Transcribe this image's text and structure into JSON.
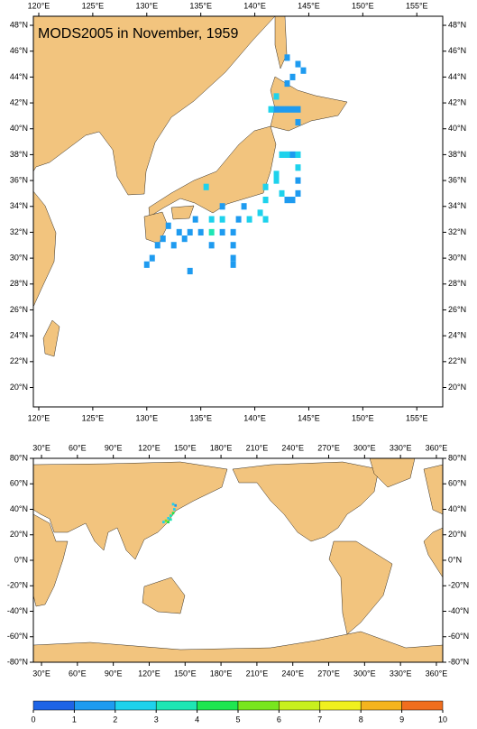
{
  "maps": [
    {
      "title": "MODS2005 in November, 1959",
      "xlim": [
        119.5,
        157.4
      ],
      "ylim": [
        18.5,
        48.7
      ],
      "cell": 0.5,
      "xticks": [
        {
          "value": 120,
          "label": "120°E"
        },
        {
          "value": 125,
          "label": "125°E"
        },
        {
          "value": 130,
          "label": "130°E"
        },
        {
          "value": 135,
          "label": "135°E"
        },
        {
          "value": 140,
          "label": "140°E"
        },
        {
          "value": 145,
          "label": "145°E"
        },
        {
          "value": 150,
          "label": "150°E"
        },
        {
          "value": 155,
          "label": "155°E"
        }
      ],
      "yticks": [
        {
          "value": 20,
          "label": "20°N"
        },
        {
          "value": 22,
          "label": "22°N"
        },
        {
          "value": 24,
          "label": "24°N"
        },
        {
          "value": 26,
          "label": "26°N"
        },
        {
          "value": 28,
          "label": "28°N"
        },
        {
          "value": 30,
          "label": "30°N"
        },
        {
          "value": 32,
          "label": "32°N"
        },
        {
          "value": 34,
          "label": "34°N"
        },
        {
          "value": 36,
          "label": "36°N"
        },
        {
          "value": 38,
          "label": "38°N"
        },
        {
          "value": 40,
          "label": "40°N"
        },
        {
          "value": 42,
          "label": "42°N"
        },
        {
          "value": 44,
          "label": "44°N"
        },
        {
          "value": 46,
          "label": "46°N"
        },
        {
          "value": 48,
          "label": "48°N"
        }
      ],
      "cells": [
        [
          143,
          45.5,
          1
        ],
        [
          144,
          45,
          1
        ],
        [
          144.5,
          44.5,
          1
        ],
        [
          143.5,
          44,
          1
        ],
        [
          143,
          43.5,
          1
        ],
        [
          141.5,
          41.5,
          2
        ],
        [
          142,
          41.5,
          1
        ],
        [
          142.5,
          41.5,
          1
        ],
        [
          143,
          41.5,
          1
        ],
        [
          143.5,
          41.5,
          1
        ],
        [
          144,
          41.5,
          1
        ],
        [
          144,
          40.5,
          1
        ],
        [
          142,
          42.5,
          2
        ],
        [
          142.5,
          38,
          2
        ],
        [
          143,
          38,
          2
        ],
        [
          143.5,
          38,
          1
        ],
        [
          144,
          38,
          2
        ],
        [
          144,
          37,
          2
        ],
        [
          144,
          36,
          1
        ],
        [
          144,
          35,
          1
        ],
        [
          143.5,
          34.5,
          1
        ],
        [
          143,
          34.5,
          1
        ],
        [
          142.5,
          35,
          2
        ],
        [
          142,
          36,
          2
        ],
        [
          142,
          36.5,
          2
        ],
        [
          141,
          35.5,
          2
        ],
        [
          141,
          34.5,
          2
        ],
        [
          140.5,
          33.5,
          2
        ],
        [
          141,
          33,
          2
        ],
        [
          139,
          34,
          1
        ],
        [
          138.5,
          33,
          1
        ],
        [
          138,
          32,
          1
        ],
        [
          138,
          31,
          1
        ],
        [
          138,
          30,
          1
        ],
        [
          137,
          34,
          1
        ],
        [
          137,
          33,
          2
        ],
        [
          137,
          32,
          1
        ],
        [
          136,
          33,
          2
        ],
        [
          136,
          32,
          3
        ],
        [
          136,
          31,
          1
        ],
        [
          135.5,
          35.5,
          2
        ],
        [
          135,
          32,
          1
        ],
        [
          134.5,
          33,
          1
        ],
        [
          134,
          32,
          1
        ],
        [
          133.5,
          31.5,
          1
        ],
        [
          133,
          32,
          1
        ],
        [
          132.5,
          31,
          1
        ],
        [
          132,
          32.5,
          1
        ],
        [
          131.5,
          31.5,
          1
        ],
        [
          131,
          31,
          1
        ],
        [
          130.5,
          30,
          1
        ],
        [
          130,
          29.5,
          1
        ],
        [
          134,
          29,
          1
        ],
        [
          138,
          29.5,
          1
        ],
        [
          139.5,
          33,
          2
        ]
      ]
    },
    {
      "xlim": [
        23.2,
        365.3
      ],
      "ylim": [
        -80,
        80
      ],
      "cell": 2,
      "xticks": [
        {
          "value": 30,
          "label": "30°E"
        },
        {
          "value": 60,
          "label": "60°E"
        },
        {
          "value": 90,
          "label": "90°E"
        },
        {
          "value": 120,
          "label": "120°E"
        },
        {
          "value": 150,
          "label": "150°E"
        },
        {
          "value": 180,
          "label": "180°E"
        },
        {
          "value": 210,
          "label": "210°E"
        },
        {
          "value": 240,
          "label": "240°E"
        },
        {
          "value": 270,
          "label": "270°E"
        },
        {
          "value": 300,
          "label": "300°E"
        },
        {
          "value": 330,
          "label": "330°E"
        },
        {
          "value": 360,
          "label": "360°E"
        }
      ],
      "yticks": [
        {
          "value": -80,
          "label": "-80°N"
        },
        {
          "value": -60,
          "label": "-60°N"
        },
        {
          "value": -40,
          "label": "-40°N"
        },
        {
          "value": -20,
          "label": "-20°N"
        },
        {
          "value": 0,
          "label": "0°N"
        },
        {
          "value": 20,
          "label": "20°N"
        },
        {
          "value": 40,
          "label": "40°N"
        },
        {
          "value": 60,
          "label": "60°N"
        },
        {
          "value": 80,
          "label": "80°N"
        }
      ],
      "cells": [
        [
          136,
          33,
          2
        ],
        [
          138,
          35,
          3
        ],
        [
          140,
          37,
          4
        ],
        [
          141,
          40,
          2
        ],
        [
          142,
          43,
          1
        ],
        [
          134,
          31,
          5
        ],
        [
          132,
          30,
          2
        ],
        [
          138,
          32,
          3
        ],
        [
          140,
          44,
          2
        ],
        [
          136,
          30,
          4
        ]
      ]
    }
  ],
  "colorbar": {
    "ticks": [
      0,
      1,
      2,
      3,
      4,
      5,
      6,
      7,
      8,
      9,
      10
    ],
    "colors": [
      "#1e64e6",
      "#1e9bf0",
      "#1ed2ec",
      "#1ee6b4",
      "#1ee650",
      "#78e61e",
      "#c8f01e",
      "#f0f01e",
      "#f5b41e",
      "#f06e1e"
    ]
  }
}
